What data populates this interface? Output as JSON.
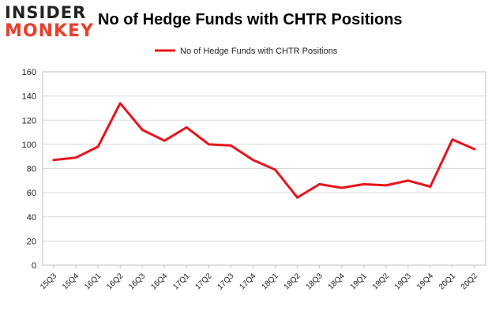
{
  "logo": {
    "line1": "INSIDER",
    "line2": "MONKEY"
  },
  "chart_data": {
    "type": "line",
    "title": "No of Hedge Funds with CHTR Positions",
    "xlabel": "",
    "ylabel": "",
    "ylim": [
      0,
      160
    ],
    "yticks": [
      0,
      20,
      40,
      60,
      80,
      100,
      120,
      140,
      160
    ],
    "grid": true,
    "legend_position": "top-center",
    "categories": [
      "15Q3",
      "15Q4",
      "16Q1",
      "16Q2",
      "16Q3",
      "16Q4",
      "17Q1",
      "17Q2",
      "17Q3",
      "17Q4",
      "18Q1",
      "18Q2",
      "18Q3",
      "18Q4",
      "19Q1",
      "19Q2",
      "19Q3",
      "19Q4",
      "20Q1",
      "20Q2"
    ],
    "series": [
      {
        "name": "No of Hedge Funds with CHTR Positions",
        "color": "#e8141b",
        "values": [
          87,
          89,
          98,
          134,
          112,
          103,
          114,
          100,
          99,
          87,
          79,
          56,
          67,
          64,
          67,
          66,
          70,
          65,
          104,
          96
        ]
      }
    ]
  }
}
